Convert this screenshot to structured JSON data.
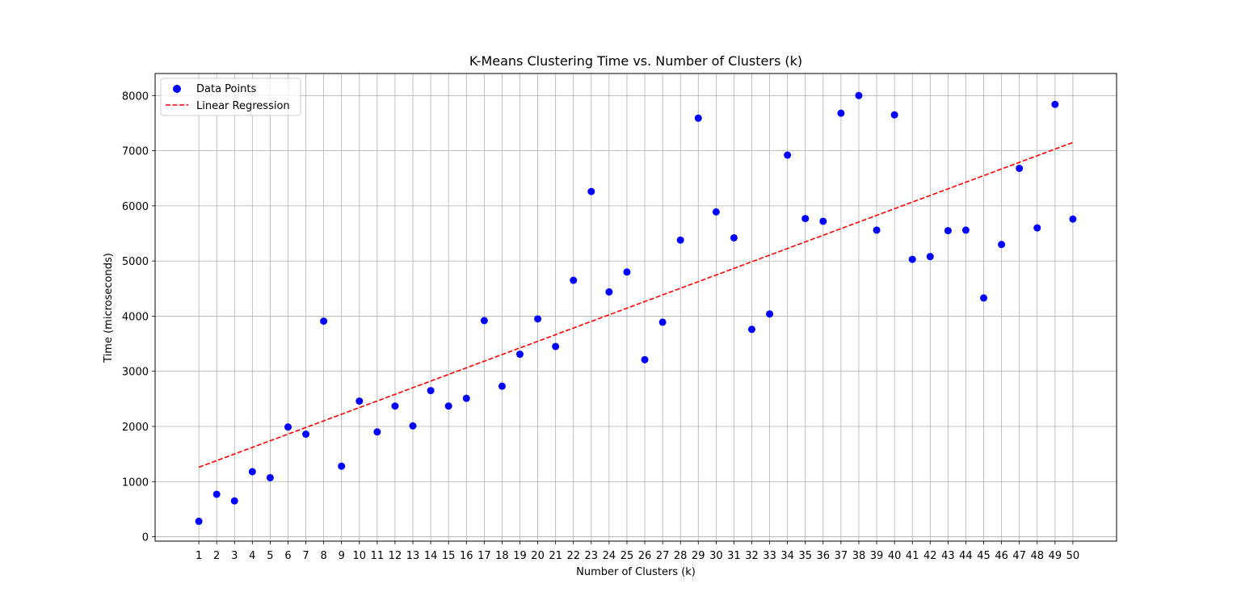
{
  "chart_data": {
    "type": "scatter",
    "title": "K-Means Clustering Time vs. Number of Clusters (k)",
    "xlabel": "Number of Clusters (k)",
    "ylabel": "Time (microseconds)",
    "xlim": [
      -1.45,
      52.45
    ],
    "ylim": [
      -80,
      8400
    ],
    "x_ticks": [
      1,
      2,
      3,
      4,
      5,
      6,
      7,
      8,
      9,
      10,
      11,
      12,
      13,
      14,
      15,
      16,
      17,
      18,
      19,
      20,
      21,
      22,
      23,
      24,
      25,
      26,
      27,
      28,
      29,
      30,
      31,
      32,
      33,
      34,
      35,
      36,
      37,
      38,
      39,
      40,
      41,
      42,
      43,
      44,
      45,
      46,
      47,
      48,
      49,
      50
    ],
    "y_ticks": [
      0,
      1000,
      2000,
      3000,
      4000,
      5000,
      6000,
      7000,
      8000
    ],
    "grid": true,
    "legend": {
      "position": "top-left",
      "entries": [
        "Data Points",
        "Linear Regression"
      ]
    },
    "series": [
      {
        "name": "Data Points",
        "kind": "scatter",
        "color": "#0000ff",
        "x": [
          1,
          2,
          3,
          4,
          5,
          6,
          7,
          8,
          9,
          10,
          11,
          12,
          13,
          14,
          15,
          16,
          17,
          18,
          19,
          20,
          21,
          22,
          23,
          24,
          25,
          26,
          27,
          28,
          29,
          30,
          31,
          32,
          33,
          34,
          35,
          36,
          37,
          38,
          39,
          40,
          41,
          42,
          43,
          44,
          45,
          46,
          47,
          48,
          49,
          50
        ],
        "y": [
          280,
          770,
          650,
          1180,
          1070,
          1990,
          1860,
          3910,
          1280,
          2460,
          1900,
          2370,
          2010,
          2650,
          2370,
          2510,
          3920,
          2730,
          3310,
          3950,
          3450,
          4650,
          6260,
          4440,
          4800,
          3210,
          3890,
          5380,
          7590,
          5890,
          5420,
          3760,
          4040,
          6920,
          5770,
          5720,
          7680,
          8000,
          5560,
          7650,
          5030,
          5080,
          5550,
          5560,
          4330,
          5300,
          6680,
          5600,
          7840,
          5760
        ]
      },
      {
        "name": "Linear Regression",
        "kind": "line",
        "style": "dashed",
        "color": "#ff0000",
        "x": [
          1,
          50
        ],
        "y": [
          1260,
          7150
        ]
      }
    ]
  }
}
